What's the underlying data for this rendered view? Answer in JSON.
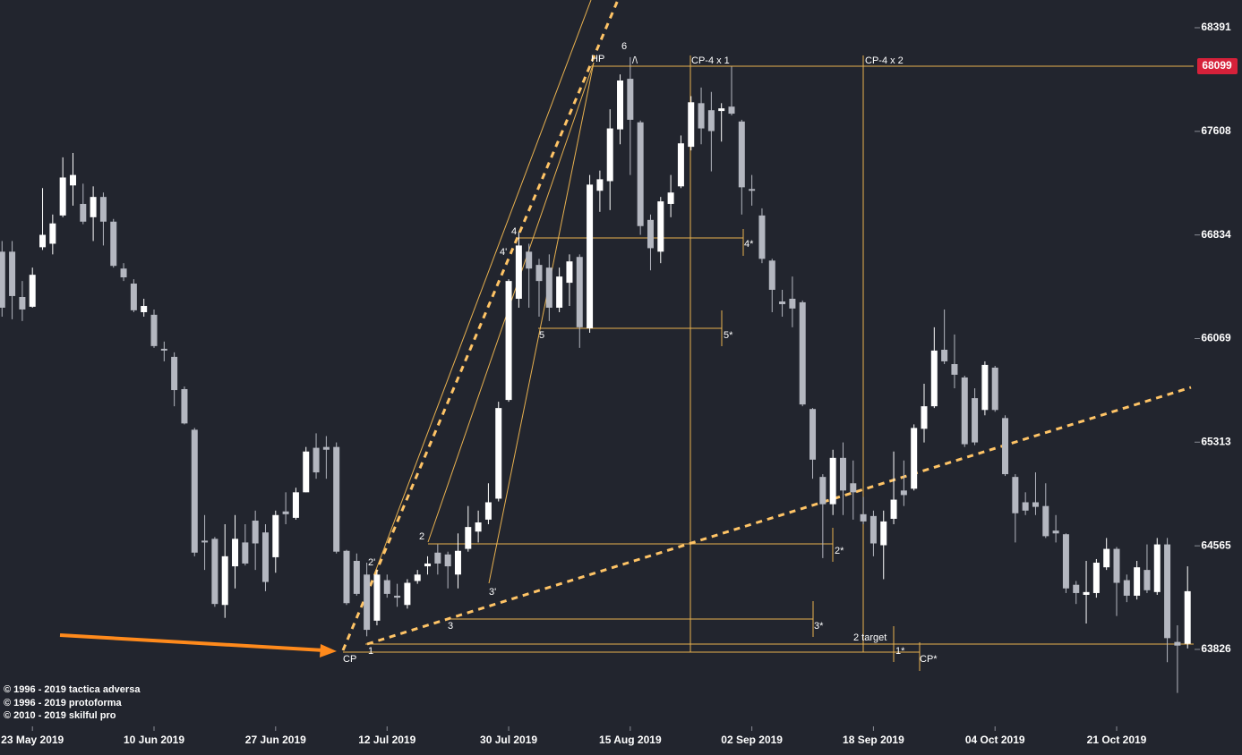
{
  "chart_data": {
    "type": "candlestick",
    "log_scale": true,
    "xlim": [
      -0.2,
      117.6
    ],
    "ylim": [
      63295,
      68602
    ],
    "yticks": [
      68391,
      67608,
      66834,
      66069,
      65313,
      64565,
      63826
    ],
    "xticks": [
      {
        "value": 3,
        "label": "23 May 2019"
      },
      {
        "value": 15,
        "label": "10 Jun 2019"
      },
      {
        "value": 27,
        "label": "27 Jun 2019"
      },
      {
        "value": 38,
        "label": "12 Jul 2019"
      },
      {
        "value": 50,
        "label": "30 Jul 2019"
      },
      {
        "value": 62,
        "label": "15 Aug 2019"
      },
      {
        "value": 74,
        "label": "02 Sep 2019"
      },
      {
        "value": 86,
        "label": "18 Sep 2019"
      },
      {
        "value": 98,
        "label": "04 Oct 2019"
      },
      {
        "value": 110,
        "label": "21 Oct 2019"
      }
    ],
    "up_color": "#ffffff",
    "down_color": "#b4b7c0",
    "price_marker": 68099,
    "price_marker_color": "#d6213a",
    "open": [
      66710,
      66710,
      66375,
      66303,
      66743,
      66769,
      66979,
      67203,
      67065,
      66966,
      67117,
      66933,
      66585,
      66474,
      66263,
      66244,
      65994,
      65935,
      65699,
      65403,
      64602,
      64615,
      64142,
      64418,
      64589,
      64746,
      64661,
      64483,
      64812,
      64766,
      64950,
      65272,
      65278,
      65278,
      64529,
      64457,
      64359,
      64030,
      64319,
      64208,
      64142,
      64313,
      64418,
      64516,
      64503,
      64359,
      64543,
      64667,
      64753,
      64904,
      65620,
      66362,
      66710,
      66612,
      66592,
      66296,
      66480,
      66671,
      66145,
      67163,
      67235,
      67623,
      68004,
      67676,
      66946,
      66710,
      67065,
      67196,
      67492,
      67820,
      67767,
      67761,
      67794,
      67682,
      67176,
      66979,
      66644,
      66342,
      66362,
      66336,
      65554,
      65061,
      64864,
      65199,
      65015,
      64792,
      64779,
      64569,
      64759,
      64963,
      64976,
      65410,
      65574,
      65987,
      65882,
      65784,
      65633,
      65547,
      65856,
      65488,
      65061,
      64878,
      64878,
      64851,
      64674,
      64648,
      64286,
      64214,
      64227,
      64411,
      64543,
      64319,
      64208,
      64392,
      64234,
      64575,
      63879,
      63866
    ],
    "high": [
      66789,
      66789,
      66493,
      66592,
      67183,
      66986,
      67413,
      67446,
      67216,
      67196,
      67150,
      66953,
      66625,
      66506,
      66362,
      66283,
      66047,
      65968,
      65718,
      65416,
      64786,
      64628,
      64720,
      64786,
      64720,
      64818,
      64720,
      64818,
      64950,
      64983,
      65278,
      65377,
      65357,
      65311,
      64536,
      64510,
      64444,
      64392,
      64359,
      64293,
      64326,
      64392,
      64490,
      64575,
      64523,
      64654,
      64851,
      64818,
      65015,
      65607,
      66506,
      66855,
      66769,
      66657,
      66690,
      66592,
      66690,
      66690,
      67281,
      67314,
      67774,
      68037,
      68168,
      67689,
      66986,
      67117,
      67281,
      67577,
      67873,
      67938,
      67905,
      67820,
      68102,
      67695,
      67281,
      67032,
      66657,
      66428,
      66526,
      66349,
      65561,
      65081,
      65258,
      65311,
      65180,
      64917,
      64818,
      64818,
      65245,
      65180,
      65442,
      65738,
      66152,
      66283,
      66099,
      65797,
      65705,
      65902,
      65869,
      65508,
      65081,
      64950,
      65094,
      65015,
      64786,
      64654,
      64313,
      64457,
      64470,
      64621,
      64556,
      64359,
      64457,
      64575,
      64621,
      64621,
      63997,
      64418
    ],
    "low": [
      66230,
      66211,
      66198,
      66296,
      66723,
      66690,
      66966,
      67052,
      66914,
      66789,
      66756,
      66592,
      66493,
      66263,
      66230,
      66001,
      65902,
      65574,
      65442,
      64490,
      64392,
      64129,
      64050,
      64260,
      64424,
      64392,
      64240,
      64372,
      64720,
      64753,
      64950,
      65048,
      65048,
      64510,
      64142,
      64208,
      63919,
      63997,
      64194,
      64129,
      64116,
      64293,
      64359,
      64359,
      64260,
      64260,
      64523,
      64589,
      64720,
      64884,
      65607,
      66296,
      66296,
      66230,
      66198,
      66263,
      66309,
      66001,
      66112,
      67006,
      67019,
      67511,
      67281,
      66835,
      66572,
      66625,
      66966,
      67183,
      67465,
      67511,
      67308,
      67531,
      67728,
      66986,
      67052,
      66625,
      66263,
      66230,
      66152,
      65574,
      65048,
      64477,
      64786,
      64786,
      64753,
      64720,
      64490,
      64326,
      64720,
      64851,
      64963,
      65311,
      65561,
      65882,
      65705,
      65278,
      65291,
      65508,
      65534,
      65068,
      64589,
      64786,
      64786,
      64621,
      64589,
      64227,
      64149,
      64010,
      64194,
      64392,
      64063,
      64162,
      64181,
      64227,
      64214,
      63735,
      63518,
      63833
    ],
    "close": [
      66296,
      66382,
      66283,
      66539,
      66835,
      66920,
      67262,
      67281,
      66933,
      67117,
      66933,
      66605,
      66520,
      66277,
      66309,
      66014,
      65981,
      65692,
      65449,
      64516,
      64589,
      64149,
      64490,
      64615,
      64438,
      64582,
      64306,
      64786,
      64792,
      64950,
      65245,
      65094,
      65258,
      64523,
      64155,
      64221,
      63965,
      64359,
      64221,
      64194,
      64300,
      64359,
      64438,
      64438,
      64418,
      64529,
      64700,
      64733,
      64878,
      65561,
      66493,
      66756,
      66585,
      66493,
      66296,
      66526,
      66638,
      66152,
      67209,
      67249,
      67630,
      67991,
      67695,
      66900,
      66736,
      67084,
      67150,
      67518,
      67827,
      67630,
      67610,
      67781,
      67741,
      67189,
      67163,
      66657,
      66428,
      66322,
      66290,
      65587,
      65186,
      64864,
      65199,
      64963,
      64950,
      64740,
      64582,
      64740,
      64897,
      64930,
      65416,
      65574,
      65981,
      65902,
      65804,
      65298,
      65311,
      65876,
      65547,
      65081,
      64799,
      64818,
      64845,
      64634,
      64654,
      64260,
      64227,
      64234,
      64444,
      64543,
      64300,
      64208,
      64411,
      64247,
      64575,
      63906,
      63853,
      64240
    ]
  },
  "annotations": [
    "CP",
    "1",
    "2'",
    "2",
    "3",
    "3'",
    "4'",
    "4",
    "5",
    "HP",
    "6",
    "/\\",
    "CP-4 x 1",
    "CP-4 x 2",
    "4*",
    "5*",
    "2*",
    "3*",
    "2 target",
    "1*",
    "CP*"
  ],
  "copyright": [
    "© 1996 - 2019 tactica adversa",
    "© 1996 - 2019 protoforma",
    "© 2010 - 2019 skilful pro"
  ]
}
